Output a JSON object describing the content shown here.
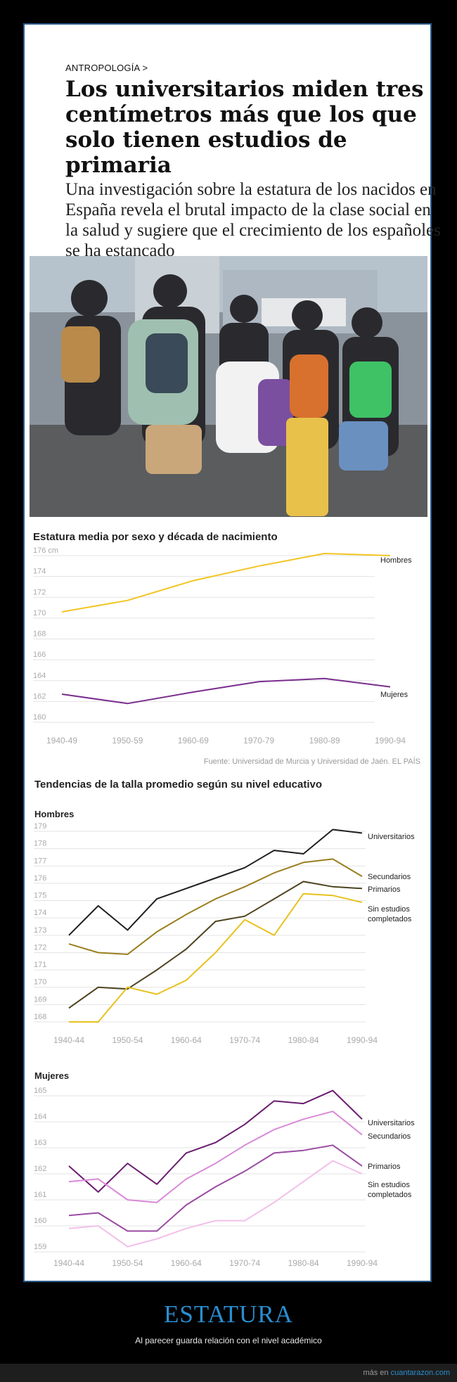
{
  "article": {
    "section": "ANTROPOLOGÍA >",
    "headline": "Los universitarios miden tres centímetros más que los que solo tienen estudios de primaria",
    "subtitle": "Una investigación sobre la estatura de los nacidos en España revela el brutal impacto de la clase social en la salud y sugiere que el crecimiento de los españoles se ha estancado"
  },
  "colors": {
    "hombres": "#f2c523",
    "mujeres": "#7a2e8e",
    "universitarios": "#1f1f1f",
    "secundarios": "#9a7f1f",
    "primarios": "#4d4420",
    "sin_estudios": "#e7c21f",
    "m_universitarios": "#6a1e6f",
    "m_secundarios": "#d98ad8",
    "m_primarios": "#9b4ba3",
    "m_sin_estudios": "#f2c0ea"
  },
  "chart_data": [
    {
      "type": "line",
      "title": "Estatura media por sexo y década de nacimiento",
      "x": [
        "1940-49",
        "1950-59",
        "1960-69",
        "1970-79",
        "1980-89",
        "1990-94"
      ],
      "ylim": [
        160,
        176
      ],
      "yticks": [
        "160",
        "162",
        "164",
        "166",
        "168",
        "170",
        "172",
        "174",
        "176 cm"
      ],
      "series": [
        {
          "name": "Hombres",
          "values": [
            170.6,
            171.7,
            173.6,
            175.0,
            176.2,
            176.0
          ]
        },
        {
          "name": "Mujeres",
          "values": [
            162.7,
            161.8,
            162.9,
            163.9,
            164.2,
            163.4
          ]
        }
      ],
      "source": "Fuente: Universidad de Murcia y Universidad de Jaén. EL PAÍS"
    },
    {
      "type": "line",
      "title": "Tendencias de la talla promedio según su nivel educativo",
      "subtitle": "Hombres",
      "x": [
        "1940-44",
        "1945-49",
        "1950-54",
        "1955-59",
        "1960-64",
        "1965-69",
        "1970-74",
        "1975-79",
        "1980-84",
        "1985-89",
        "1990-94"
      ],
      "xticks": [
        "1940-44",
        "1950-54",
        "1960-64",
        "1970-74",
        "1980-84",
        "1990-94"
      ],
      "ylim": [
        168,
        179
      ],
      "series": [
        {
          "name": "Universitarios",
          "values": [
            173.0,
            174.7,
            173.3,
            175.1,
            175.7,
            176.3,
            176.9,
            177.9,
            177.7,
            179.1,
            178.9
          ]
        },
        {
          "name": "Secundarios",
          "values": [
            172.5,
            172.0,
            171.9,
            173.2,
            174.2,
            175.1,
            175.8,
            176.6,
            177.2,
            177.4,
            176.4
          ]
        },
        {
          "name": "Primarios",
          "values": [
            168.8,
            170.0,
            169.9,
            171.0,
            172.2,
            173.8,
            174.1,
            175.1,
            176.1,
            175.8,
            175.7
          ]
        },
        {
          "name": "Sin estudios completados",
          "values": [
            168.0,
            168.0,
            170.0,
            169.6,
            170.4,
            172.0,
            173.9,
            173.0,
            175.4,
            175.3,
            174.9
          ]
        }
      ]
    },
    {
      "type": "line",
      "subtitle": "Mujeres",
      "x": [
        "1940-44",
        "1945-49",
        "1950-54",
        "1955-59",
        "1960-64",
        "1965-69",
        "1970-74",
        "1975-79",
        "1980-84",
        "1985-89",
        "1990-94"
      ],
      "xticks": [
        "1940-44",
        "1950-54",
        "1960-64",
        "1970-74",
        "1980-84",
        "1990-94"
      ],
      "ylim": [
        159,
        165
      ],
      "series": [
        {
          "name": "Universitarios",
          "values": [
            162.3,
            161.3,
            162.4,
            161.6,
            162.8,
            163.2,
            163.9,
            164.8,
            164.7,
            165.2,
            164.1
          ]
        },
        {
          "name": "Secundarios",
          "values": [
            161.7,
            161.8,
            161.0,
            160.9,
            161.8,
            162.4,
            163.1,
            163.7,
            164.1,
            164.4,
            163.5
          ]
        },
        {
          "name": "Primarios",
          "values": [
            160.4,
            160.5,
            159.8,
            159.8,
            160.8,
            161.5,
            162.1,
            162.8,
            162.9,
            163.1,
            162.3
          ]
        },
        {
          "name": "Sin estudios completados",
          "values": [
            159.9,
            160.0,
            159.2,
            159.5,
            159.9,
            160.2,
            160.2,
            160.9,
            161.7,
            162.5,
            162.0
          ]
        }
      ]
    }
  ],
  "footer": {
    "title": "ESTATURA",
    "subtitle": "Al parecer guarda relación con el nivel académico",
    "credit_prefix": "más en",
    "credit_site": "cuantarazon.com"
  }
}
